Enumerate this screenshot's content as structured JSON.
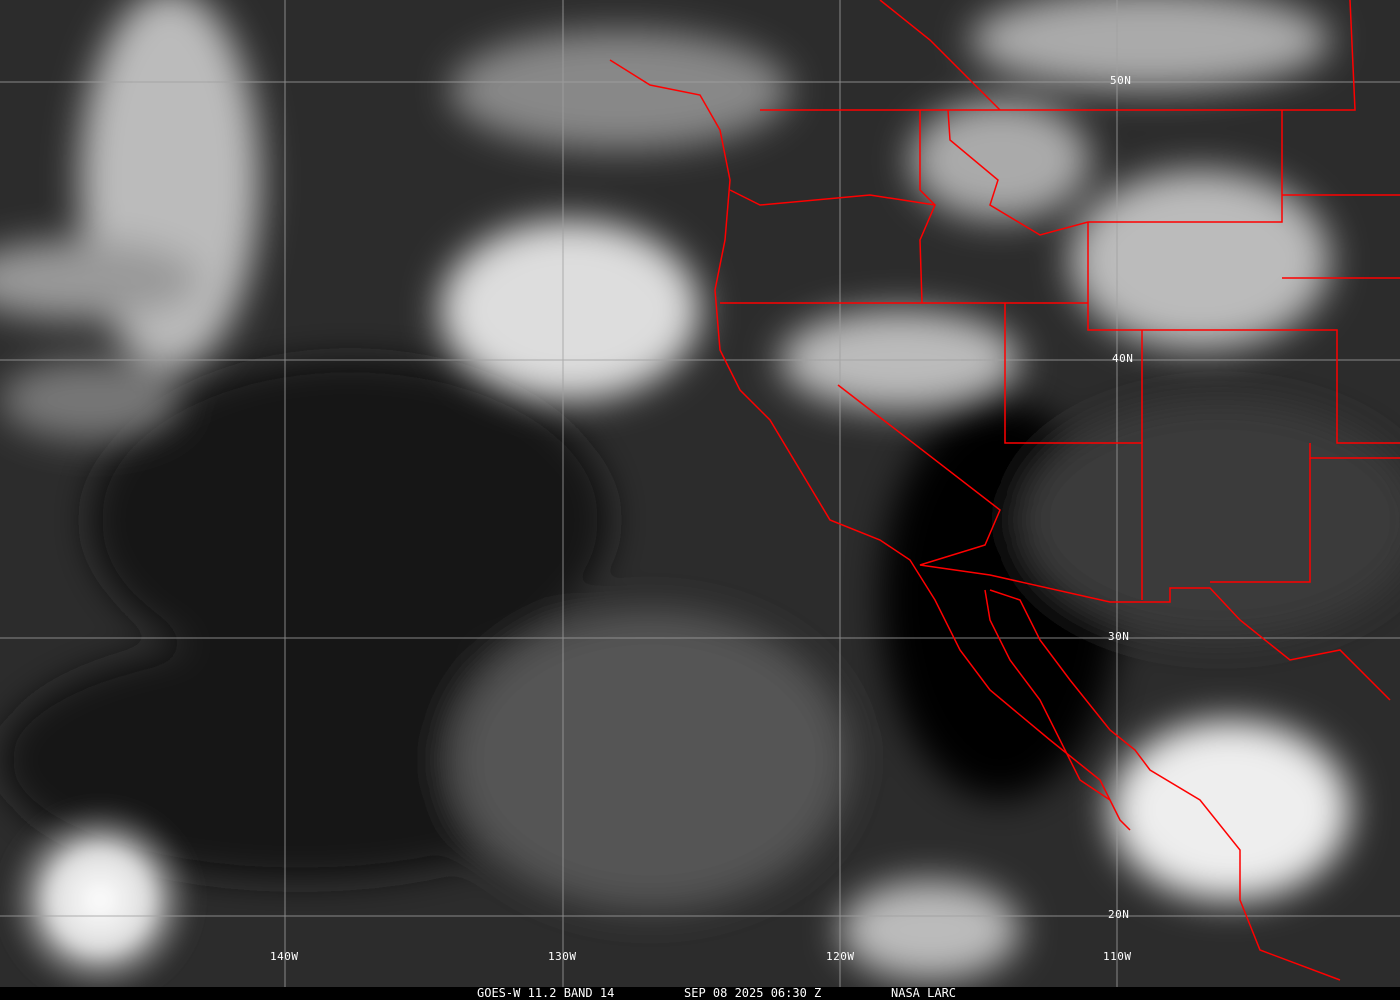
{
  "image": {
    "satellite": "GOES-W",
    "channel": "11.2 BAND 14",
    "datetime": "SEP 08 2025 06:30 Z",
    "credit": "NASA LARC",
    "border_color": "#ff0000",
    "grid_color": "#a0a0a0"
  },
  "latitude_labels": [
    "50N",
    "40N",
    "30N",
    "20N"
  ],
  "longitude_labels": [
    "140W",
    "130W",
    "120W",
    "110W"
  ]
}
